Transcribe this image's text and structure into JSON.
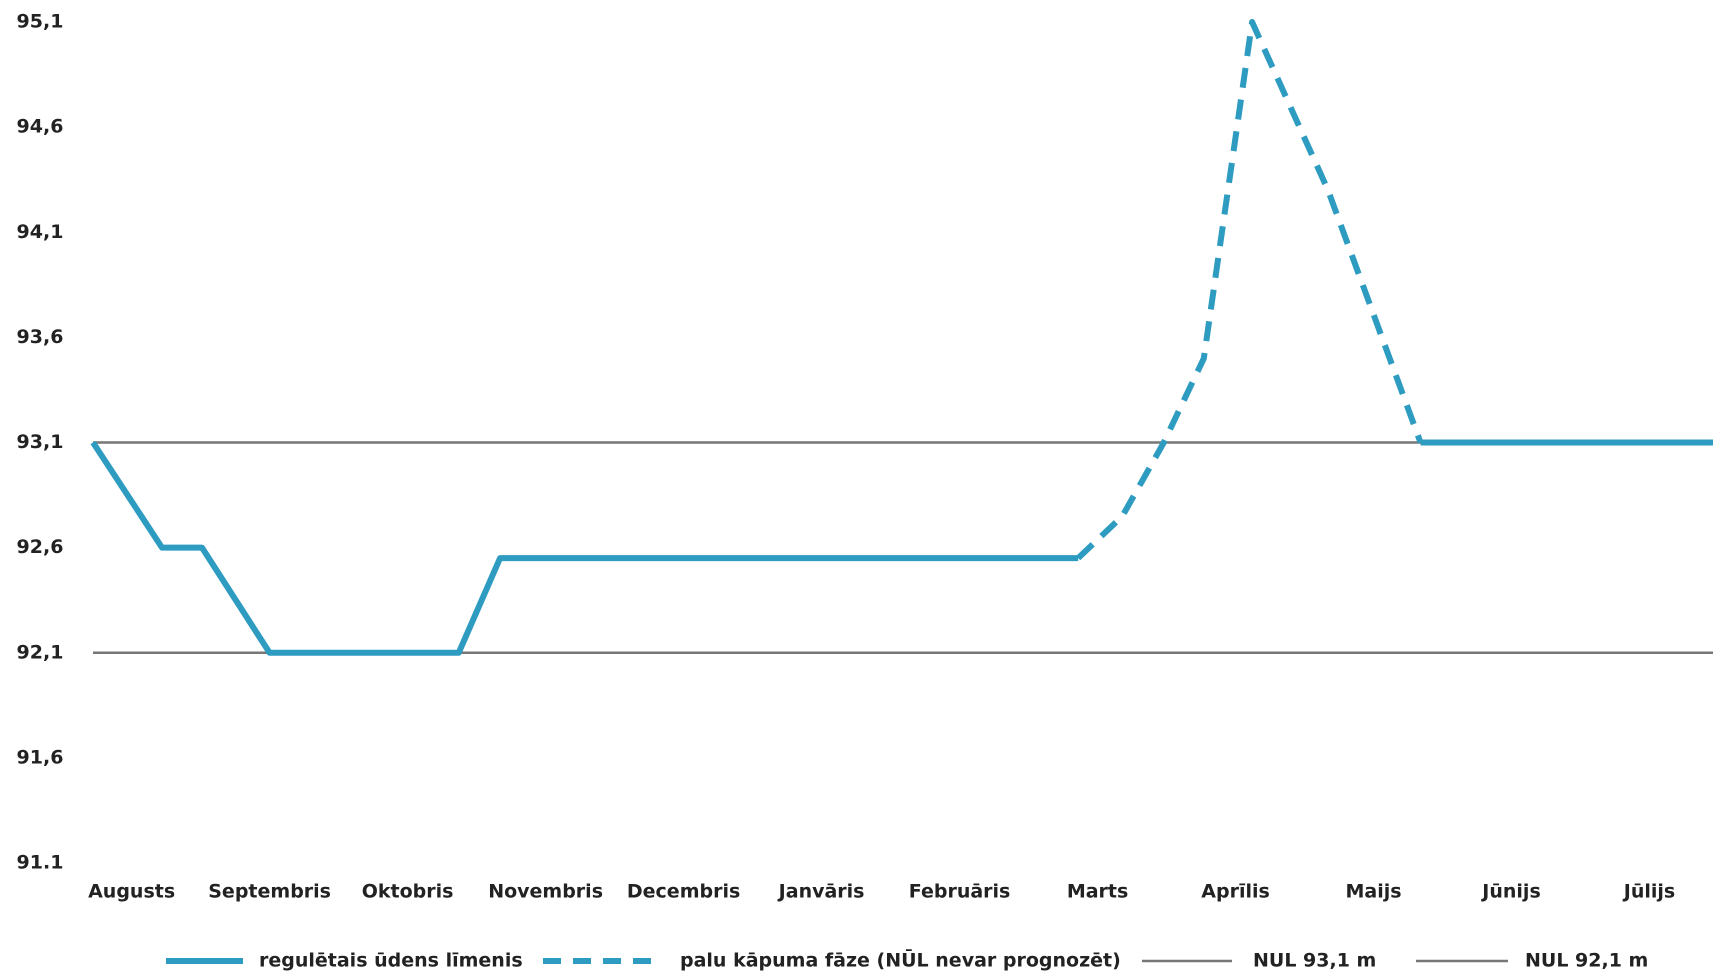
{
  "chart_data": {
    "type": "line",
    "categories": [
      "Augusts",
      "Septembris",
      "Oktobris",
      "Novembris",
      "Decembris",
      "Janvāris",
      "Februāris",
      "Marts",
      "Aprīlis",
      "Maijs",
      "Jūnijs",
      "Jūlijs"
    ],
    "xlim": [
      -0.28,
      11.46
    ],
    "ylim": [
      91.1,
      95.1
    ],
    "yticks": [
      {
        "value": 91.1,
        "label": "91.1"
      },
      {
        "value": 91.6,
        "label": "91,6"
      },
      {
        "value": 92.1,
        "label": "92,1"
      },
      {
        "value": 92.6,
        "label": "92,6"
      },
      {
        "value": 93.1,
        "label": "93,1"
      },
      {
        "value": 93.6,
        "label": "93,6"
      },
      {
        "value": 94.1,
        "label": "94,1"
      },
      {
        "value": 94.6,
        "label": "94,6"
      },
      {
        "value": 95.1,
        "label": "95,1"
      }
    ],
    "series": [
      {
        "name": "regulētais ūdens līmenis",
        "color": "#2e9bc0",
        "style": "solid",
        "width": 6,
        "x": [
          -0.28,
          0.22,
          0.51,
          1.0,
          2.37,
          2.67,
          6.86,
          null,
          9.34,
          11.46
        ],
        "values": [
          93.1,
          92.6,
          92.6,
          92.1,
          92.1,
          92.55,
          92.55,
          null,
          93.1,
          93.1
        ]
      },
      {
        "name": "palu kāpuma fāze (NŪL nevar prognozēt)",
        "color": "#2e9bc0",
        "style": "dashed",
        "width": 6,
        "x": [
          6.86,
          7.18,
          7.48,
          7.77,
          8.12,
          8.67,
          9.34
        ],
        "values": [
          92.55,
          92.75,
          93.1,
          93.5,
          95.1,
          94.3,
          93.1
        ]
      },
      {
        "name": "NUL 93,1 m",
        "color": "#777777",
        "style": "solid",
        "width": 2.5,
        "x": [
          -0.28,
          11.46
        ],
        "values": [
          93.1,
          93.1
        ]
      },
      {
        "name": "NUL 92,1 m",
        "color": "#777777",
        "style": "solid",
        "width": 2.5,
        "x": [
          -0.28,
          11.46
        ],
        "values": [
          92.1,
          92.1
        ]
      }
    ]
  }
}
